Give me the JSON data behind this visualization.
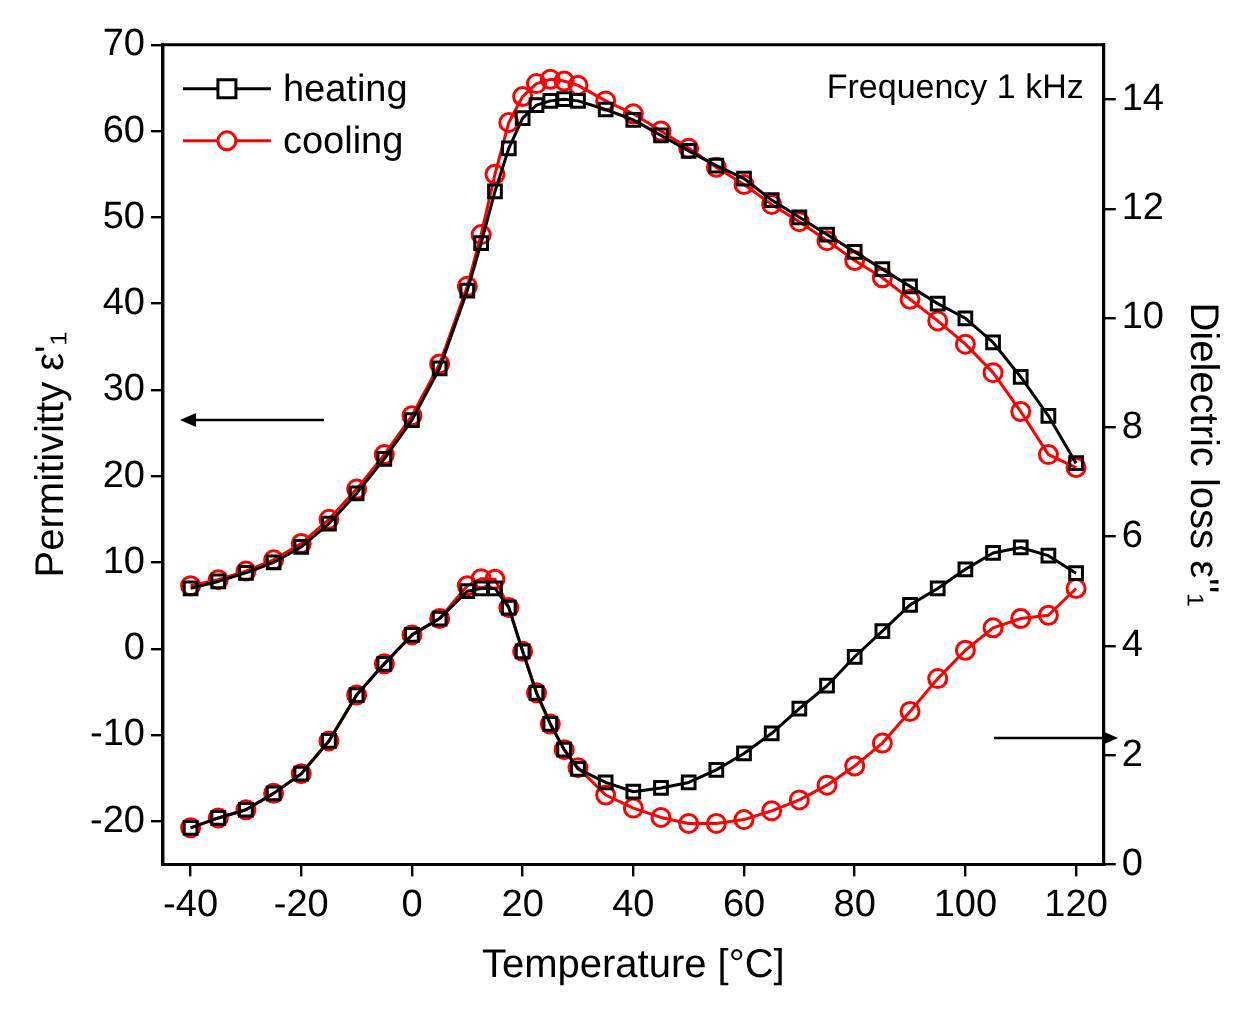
{
  "chart_data": {
    "type": "line",
    "x": [
      -40,
      -35,
      -30,
      -25,
      -20,
      -15,
      -10,
      -5,
      0,
      5,
      10,
      12.5,
      15,
      17.5,
      20,
      22.5,
      25,
      27.5,
      30,
      35,
      40,
      45,
      50,
      55,
      60,
      65,
      70,
      75,
      80,
      85,
      90,
      95,
      100,
      105,
      110,
      115,
      120
    ],
    "series": [
      {
        "name": "heating",
        "color": "#000000",
        "marker": "square",
        "values": [
          7,
          7.8,
          8.8,
          10,
          11.8,
          14.5,
          18,
          22,
          26.5,
          32.5,
          41.5,
          47,
          53,
          58,
          61.5,
          63,
          63.5,
          63.7,
          63.5,
          62.5,
          61.3,
          59.5,
          57.7,
          56,
          54.5,
          52,
          50,
          48,
          46,
          44,
          42,
          40,
          38.3,
          35.5,
          31.5,
          27,
          21.5
        ]
      },
      {
        "name": "cooling",
        "color": "#ff0000",
        "marker": "circle",
        "values": [
          7.3,
          8,
          9,
          10.3,
          12.2,
          15,
          18.5,
          22.5,
          27,
          33,
          42,
          48,
          55,
          61,
          64,
          65.5,
          66,
          65.8,
          65.3,
          63.5,
          62,
          60,
          58,
          55.8,
          53.8,
          51.5,
          49.5,
          47.3,
          45,
          43,
          40.5,
          38,
          35.3,
          32,
          27.5,
          22.5,
          21
        ]
      },
      {
        "color": "#000000",
        "marker": "square",
        "axis": "y2",
        "values": [
          0.67,
          0.85,
          1.0,
          1.3,
          1.66,
          2.26,
          3.1,
          3.67,
          4.2,
          4.5,
          5.0,
          5.05,
          5.05,
          4.7,
          3.9,
          3.14,
          2.57,
          2.1,
          1.75,
          1.5,
          1.33,
          1.4,
          1.5,
          1.73,
          2.03,
          2.4,
          2.85,
          3.27,
          3.8,
          4.27,
          4.75,
          5.05,
          5.4,
          5.7,
          5.8,
          5.65,
          5.33
        ]
      },
      {
        "color": "#ff0000",
        "marker": "circle",
        "axis": "y2",
        "values": [
          0.67,
          0.85,
          1.0,
          1.3,
          1.66,
          2.26,
          3.1,
          3.67,
          4.2,
          4.5,
          5.1,
          5.23,
          5.22,
          4.7,
          3.9,
          3.14,
          2.57,
          2.1,
          1.77,
          1.27,
          1.03,
          0.86,
          0.75,
          0.75,
          0.82,
          0.98,
          1.18,
          1.45,
          1.8,
          2.22,
          2.8,
          3.4,
          3.92,
          4.33,
          4.5,
          4.56,
          5.05
        ]
      }
    ],
    "xlabel": "Temperature [°C]",
    "ylabel": "Permitivitty ε'₁",
    "y2label": "Dielectric loss ε''₁",
    "xlim": [
      -45,
      125
    ],
    "xticks": [
      -40,
      -20,
      0,
      20,
      40,
      60,
      80,
      100,
      120
    ],
    "ylim": [
      -25,
      70
    ],
    "yticks": [
      -20,
      -10,
      0,
      10,
      20,
      30,
      40,
      50,
      60,
      70
    ],
    "y2lim": [
      0,
      15
    ],
    "y2ticks": [
      0,
      2,
      4,
      6,
      8,
      10,
      12,
      14
    ],
    "annotations": [
      "Frequency 1 kHz"
    ],
    "legend": "top left",
    "grid": false,
    "line_style": "solid"
  }
}
